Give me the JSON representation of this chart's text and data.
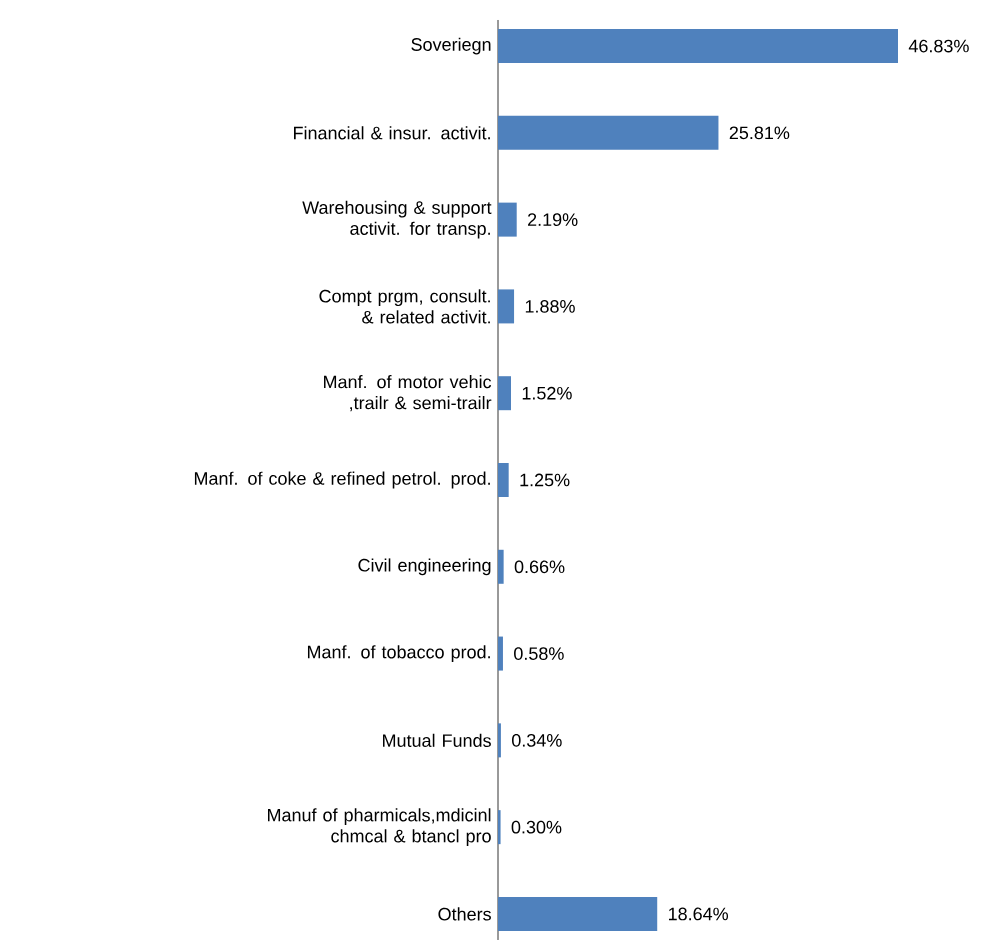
{
  "chart_data": {
    "type": "bar",
    "orientation": "horizontal",
    "color": "#4f81bd",
    "categories": [
      "Soveriegn",
      "Financial & insur. activit.",
      "Warehousing & support activit. for transp.",
      "Compt prgm, consult. & related activit.",
      "Manf. of motor vehic ,trailr & semi-trailr",
      "Manf. of coke & refined petrol. prod.",
      "Civil engineering",
      "Manf. of tobacco prod.",
      "Mutual Funds",
      "Manuf of pharmicals,mdicinl chmcal & btancl pro",
      "Others"
    ],
    "values": [
      46.83,
      25.81,
      2.19,
      1.88,
      1.52,
      1.25,
      0.66,
      0.58,
      0.34,
      0.3,
      18.64
    ],
    "value_labels": [
      "46.83%",
      "25.81%",
      "2.19%",
      "1.88%",
      "1.52%",
      "1.25%",
      "0.66%",
      "0.58%",
      "0.34%",
      "0.30%",
      "18.64%"
    ]
  }
}
